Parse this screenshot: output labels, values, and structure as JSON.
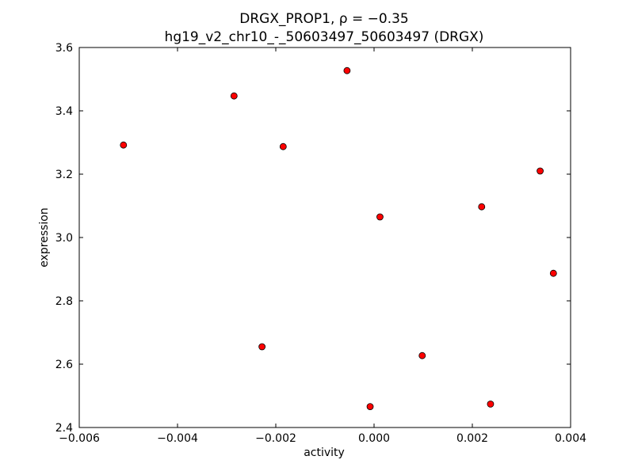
{
  "chart_data": {
    "type": "scatter",
    "title_lines": [
      "DRGX_PROP1, ρ = −0.35",
      "hg19_v2_chr10_-_50603497_50603497 (DRGX)"
    ],
    "xlabel": "activity",
    "ylabel": "expression",
    "xlim": [
      -0.006,
      0.004
    ],
    "ylim": [
      2.4,
      3.6
    ],
    "xticks": [
      -0.006,
      -0.004,
      -0.002,
      0.0,
      0.002,
      0.004
    ],
    "xtick_labels": [
      "−0.006",
      "−0.004",
      "−0.002",
      "0.000",
      "0.002",
      "0.004"
    ],
    "yticks": [
      2.4,
      2.6,
      2.8,
      3.0,
      3.2,
      3.4,
      3.6
    ],
    "ytick_labels": [
      "2.4",
      "2.6",
      "2.8",
      "3.0",
      "3.2",
      "3.4",
      "3.6"
    ],
    "grid": false,
    "marker_color": "#ff0000",
    "marker_edge": "#000000",
    "points": [
      {
        "x": -0.0051,
        "y": 3.292
      },
      {
        "x": -0.00285,
        "y": 3.447
      },
      {
        "x": -0.00055,
        "y": 3.527
      },
      {
        "x": -0.00185,
        "y": 3.287
      },
      {
        "x": -0.00228,
        "y": 2.655
      },
      {
        "x": -8e-05,
        "y": 2.466
      },
      {
        "x": 0.00012,
        "y": 3.065
      },
      {
        "x": 0.00098,
        "y": 2.627
      },
      {
        "x": 0.00219,
        "y": 3.097
      },
      {
        "x": 0.00237,
        "y": 2.474
      },
      {
        "x": 0.00338,
        "y": 3.21
      },
      {
        "x": 0.00365,
        "y": 2.887
      }
    ]
  }
}
